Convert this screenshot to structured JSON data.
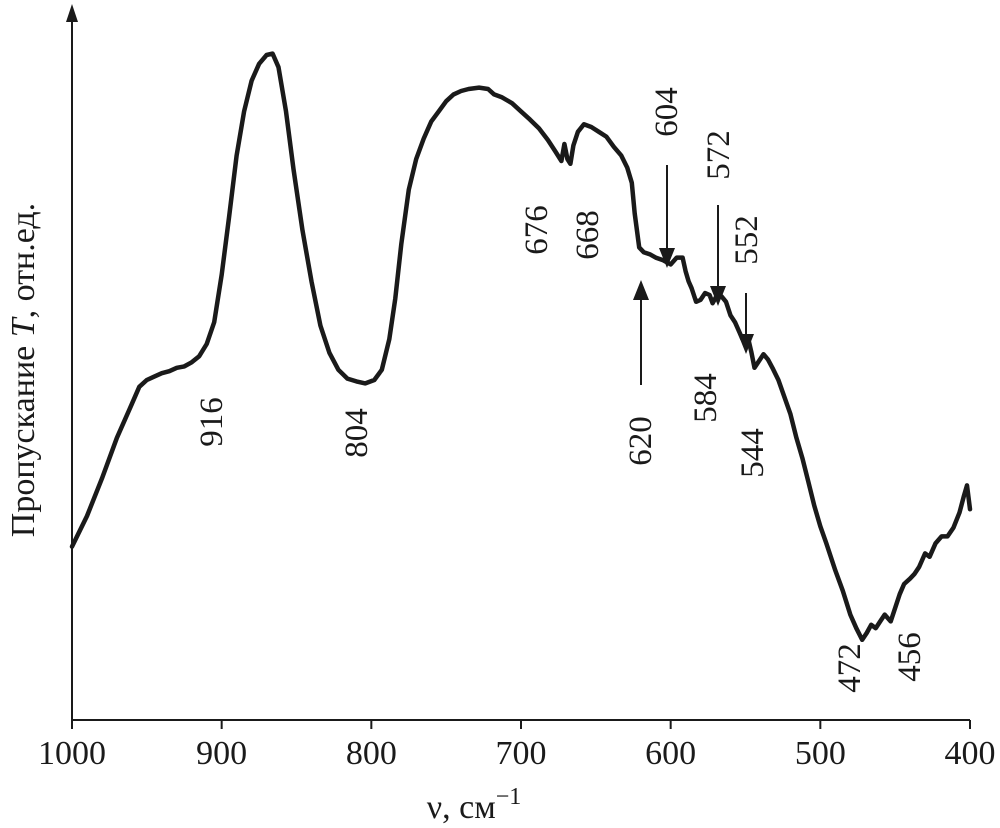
{
  "chart_data": {
    "type": "line",
    "title": "",
    "xlabel": "ν, см",
    "xlabel_superscript": "−1",
    "ylabel_prefix": "Пропускание ",
    "ylabel_symbol": "T",
    "ylabel_suffix": ", отн.ед.",
    "xlim": [
      1000,
      400
    ],
    "ylim": [
      0,
      100
    ],
    "x_reversed": true,
    "y_ticks_shown": false,
    "grid": false,
    "x_ticks": [
      1000,
      900,
      800,
      700,
      600,
      500,
      400
    ],
    "x_tick_labels": [
      "1000",
      "900",
      "800",
      "700",
      "600",
      "500",
      "400"
    ],
    "series": [
      {
        "color": "#1a1a1a",
        "points": [
          [
            1000,
            25.5
          ],
          [
            990,
            30.0
          ],
          [
            980,
            35.5
          ],
          [
            970,
            41.5
          ],
          [
            960,
            46.5
          ],
          [
            955,
            49.0
          ],
          [
            950,
            50.0
          ],
          [
            945,
            50.5
          ],
          [
            940,
            51.0
          ],
          [
            935,
            51.3
          ],
          [
            930,
            51.8
          ],
          [
            925,
            52.0
          ],
          [
            920,
            52.6
          ],
          [
            915,
            53.5
          ],
          [
            910,
            55.3
          ],
          [
            905,
            58.5
          ],
          [
            900,
            65.5
          ],
          [
            895,
            74.0
          ],
          [
            890,
            83.0
          ],
          [
            885,
            89.5
          ],
          [
            880,
            94.0
          ],
          [
            875,
            96.5
          ],
          [
            870,
            97.8
          ],
          [
            866,
            98.0
          ],
          [
            862,
            96.0
          ],
          [
            857,
            89.5
          ],
          [
            852,
            81.0
          ],
          [
            846,
            72.0
          ],
          [
            840,
            64.5
          ],
          [
            834,
            58.0
          ],
          [
            828,
            54.0
          ],
          [
            822,
            51.5
          ],
          [
            816,
            50.2
          ],
          [
            810,
            49.8
          ],
          [
            804,
            49.5
          ],
          [
            798,
            50.0
          ],
          [
            793,
            51.5
          ],
          [
            788,
            56.0
          ],
          [
            784,
            62.0
          ],
          [
            780,
            70.0
          ],
          [
            775,
            78.0
          ],
          [
            770,
            82.5
          ],
          [
            765,
            85.5
          ],
          [
            760,
            88.0
          ],
          [
            755,
            89.5
          ],
          [
            750,
            91.0
          ],
          [
            745,
            92.0
          ],
          [
            740,
            92.5
          ],
          [
            735,
            92.8
          ],
          [
            728,
            93.0
          ],
          [
            722,
            92.8
          ],
          [
            718,
            92.0
          ],
          [
            713,
            91.6
          ],
          [
            706,
            90.7
          ],
          [
            700,
            89.5
          ],
          [
            694,
            88.3
          ],
          [
            688,
            87.0
          ],
          [
            682,
            85.3
          ],
          [
            677,
            83.6
          ],
          [
            673,
            82.2
          ],
          [
            671,
            84.7
          ],
          [
            669,
            82.5
          ],
          [
            667,
            81.8
          ],
          [
            665,
            84.5
          ],
          [
            662,
            86.5
          ],
          [
            658,
            87.6
          ],
          [
            653,
            87.2
          ],
          [
            648,
            86.5
          ],
          [
            643,
            85.8
          ],
          [
            638,
            84.3
          ],
          [
            633,
            83.0
          ],
          [
            629,
            81.2
          ],
          [
            626,
            79.0
          ],
          [
            624,
            74.5
          ],
          [
            621,
            69.5
          ],
          [
            618,
            68.8
          ],
          [
            614,
            68.5
          ],
          [
            610,
            68.0
          ],
          [
            605,
            67.6
          ],
          [
            600,
            67.0
          ],
          [
            596,
            68.0
          ],
          [
            592,
            68.0
          ],
          [
            590,
            66.0
          ],
          [
            588,
            64.5
          ],
          [
            586,
            63.5
          ],
          [
            583,
            61.5
          ],
          [
            580,
            61.8
          ],
          [
            577,
            62.8
          ],
          [
            574,
            62.5
          ],
          [
            572,
            61.3
          ],
          [
            569,
            62.5
          ],
          [
            566,
            62.3
          ],
          [
            563,
            61.5
          ],
          [
            560,
            59.5
          ],
          [
            557,
            58.5
          ],
          [
            555,
            57.5
          ],
          [
            552,
            56.0
          ],
          [
            548,
            55.9
          ],
          [
            546,
            54.0
          ],
          [
            544,
            51.8
          ],
          [
            541,
            52.8
          ],
          [
            538,
            53.8
          ],
          [
            535,
            53.0
          ],
          [
            532,
            51.8
          ],
          [
            528,
            50.0
          ],
          [
            524,
            47.5
          ],
          [
            520,
            45.0
          ],
          [
            516,
            41.5
          ],
          [
            512,
            38.5
          ],
          [
            508,
            35.0
          ],
          [
            504,
            31.5
          ],
          [
            500,
            28.5
          ],
          [
            496,
            26.0
          ],
          [
            490,
            22.0
          ],
          [
            485,
            19.0
          ],
          [
            480,
            15.5
          ],
          [
            476,
            13.5
          ],
          [
            472,
            11.8
          ],
          [
            469,
            12.8
          ],
          [
            466,
            14.0
          ],
          [
            463,
            13.5
          ],
          [
            460,
            14.5
          ],
          [
            457,
            15.5
          ],
          [
            453,
            14.5
          ],
          [
            450,
            16.5
          ],
          [
            447,
            18.5
          ],
          [
            444,
            20.0
          ],
          [
            440,
            20.8
          ],
          [
            437,
            21.5
          ],
          [
            434,
            22.5
          ],
          [
            430,
            24.5
          ],
          [
            427,
            24.0
          ],
          [
            423,
            26.0
          ],
          [
            419,
            27.0
          ],
          [
            415,
            27.0
          ],
          [
            411,
            28.3
          ],
          [
            407,
            30.5
          ],
          [
            404,
            33.0
          ],
          [
            402,
            34.5
          ],
          [
            400,
            31.0
          ]
        ]
      }
    ],
    "annotations": [
      {
        "label": "916",
        "x": 916
      },
      {
        "label": "804",
        "x": 804
      },
      {
        "label": "676",
        "x": 676
      },
      {
        "label": "668",
        "x": 668
      },
      {
        "label": "620",
        "x": 620,
        "arrow": "up"
      },
      {
        "label": "604",
        "x": 604,
        "arrow": "down"
      },
      {
        "label": "584",
        "x": 584
      },
      {
        "label": "572",
        "x": 572,
        "arrow": "down"
      },
      {
        "label": "552",
        "x": 552,
        "arrow": "down"
      },
      {
        "label": "544",
        "x": 544
      },
      {
        "label": "472",
        "x": 472
      },
      {
        "label": "456",
        "x": 456
      }
    ]
  }
}
